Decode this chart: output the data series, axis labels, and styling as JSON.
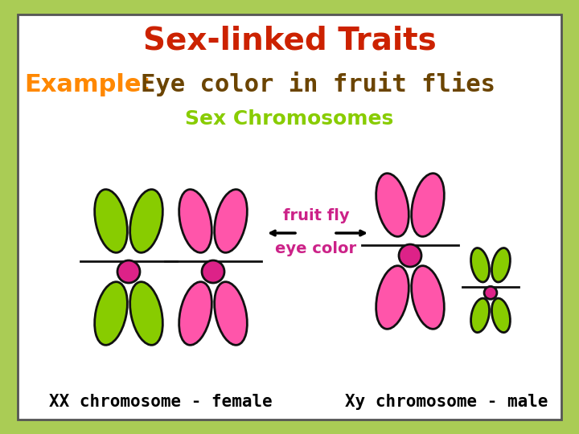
{
  "title": "Sex-linked Traits",
  "title_color": "#cc2200",
  "example_label": "Example:",
  "example_color": "#ff8800",
  "subtitle": "Eye color in fruit flies",
  "subtitle_color": "#6b4400",
  "sex_chrom_label": "Sex Chromosomes",
  "sex_chrom_color": "#88cc00",
  "arrow_label_line1": "fruit fly",
  "arrow_label_line2": "eye color",
  "arrow_label_color": "#cc2288",
  "female_label": "XX chromosome - female",
  "male_label": "Xy chromosome - male",
  "label_color": "#000000",
  "green_color": "#88cc00",
  "pink_color": "#ff55aa",
  "centromere_color": "#dd2288",
  "outline_color": "#111111",
  "bg_outer": "#aacc55",
  "bg_inner": "#ffffff",
  "title_fontsize": 28,
  "example_fontsize": 22,
  "sex_chrom_fontsize": 18,
  "arrow_fontsize": 14,
  "label_fontsize": 15
}
